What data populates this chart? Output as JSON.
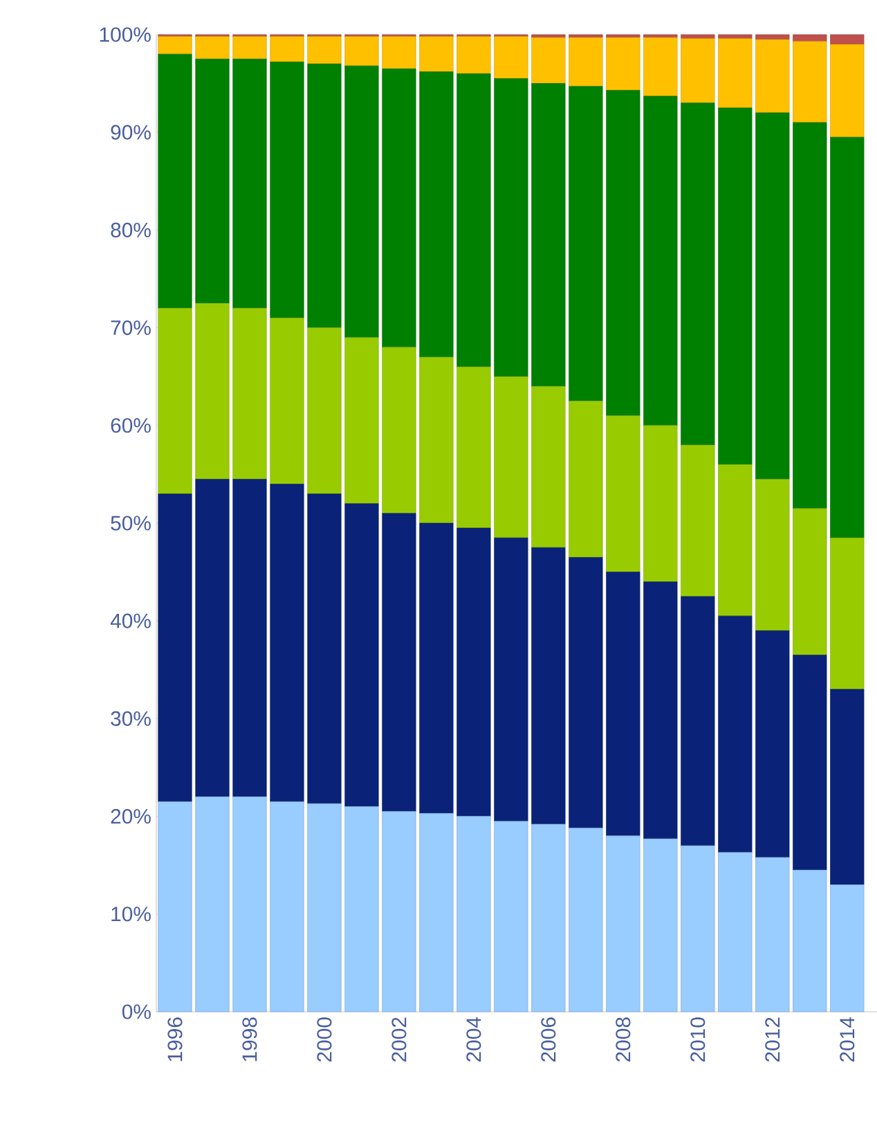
{
  "chart_data": {
    "type": "bar",
    "stacked": true,
    "categories": [
      "1996",
      null,
      "1998",
      null,
      "2000",
      null,
      "2002",
      null,
      "2004",
      null,
      "2006",
      null,
      "2008",
      null,
      "2010",
      null,
      "2012",
      null,
      "2014"
    ],
    "series": [
      {
        "color": "#99ccff",
        "values": [
          21.5,
          22,
          22,
          21.5,
          21.3,
          21,
          20.5,
          20.3,
          20,
          19.5,
          19.2,
          18.8,
          18,
          17.7,
          17,
          16.3,
          15.8,
          14.5,
          13
        ]
      },
      {
        "color": "#0a2378",
        "values": [
          31.5,
          32.5,
          32.5,
          32.5,
          31.7,
          31,
          30.5,
          29.7,
          29.5,
          29,
          28.3,
          27.7,
          27,
          26.3,
          25.5,
          24.2,
          23.2,
          22,
          20
        ]
      },
      {
        "color": "#99cc00",
        "values": [
          19,
          18,
          17.5,
          17,
          17,
          17,
          17,
          17,
          16.5,
          16.5,
          16.5,
          16,
          16,
          16,
          15.5,
          15.5,
          15.5,
          15,
          15.5
        ]
      },
      {
        "color": "#008000",
        "values": [
          26,
          25,
          25.5,
          26.2,
          27,
          27.8,
          28.5,
          29.2,
          30,
          30.5,
          31,
          32.2,
          33.3,
          33.7,
          35,
          36.5,
          37.5,
          39.5,
          41
        ]
      },
      {
        "color": "#ffc000",
        "values": [
          1.8,
          2.3,
          2.3,
          2.6,
          2.8,
          3.0,
          3.3,
          3.6,
          3.8,
          4.3,
          4.7,
          5,
          5.4,
          6,
          6.6,
          7.1,
          7.5,
          8.3,
          9.5
        ]
      },
      {
        "color": "#c0504d",
        "values": [
          0.2,
          0.2,
          0.2,
          0.2,
          0.2,
          0.2,
          0.2,
          0.2,
          0.2,
          0.2,
          0.3,
          0.3,
          0.3,
          0.3,
          0.4,
          0.4,
          0.5,
          0.7,
          1
        ]
      }
    ],
    "ylim": [
      0,
      100
    ],
    "yticks": [
      {
        "value": 0,
        "label": "0%"
      },
      {
        "value": 10,
        "label": "10%"
      },
      {
        "value": 20,
        "label": "20%"
      },
      {
        "value": 30,
        "label": "30%"
      },
      {
        "value": 40,
        "label": "40%"
      },
      {
        "value": 50,
        "label": "50%"
      },
      {
        "value": 60,
        "label": "60%"
      },
      {
        "value": 70,
        "label": "70%"
      },
      {
        "value": 80,
        "label": "80%"
      },
      {
        "value": 90,
        "label": "90%"
      },
      {
        "value": 100,
        "label": "100%"
      }
    ],
    "grid": false
  }
}
